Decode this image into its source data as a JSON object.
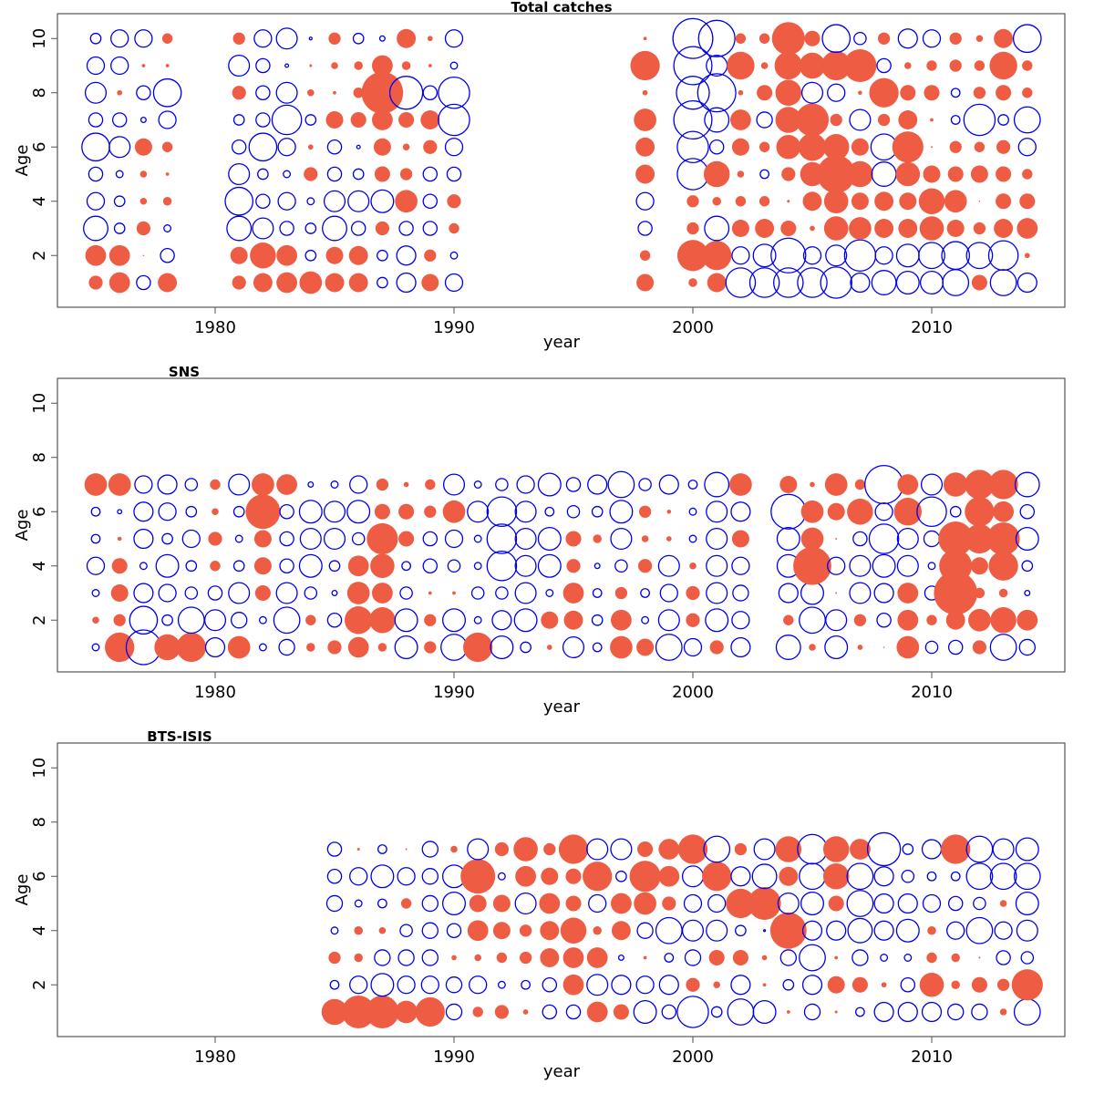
{
  "colors": {
    "positive": "#ee5d43",
    "negative": "#0000ee",
    "frame": "#555555"
  },
  "chart_data": [
    {
      "type": "scatter",
      "subtype": "bubble",
      "title": "Total catches",
      "title_position": "top-center",
      "xlabel": "year",
      "ylabel": "Age",
      "xlim": [
        1973.5,
        2015.5
      ],
      "ylim": [
        0,
        11
      ],
      "xticks": [
        1980,
        1990,
        2000,
        2010
      ],
      "yticks": [
        2,
        4,
        6,
        8,
        10
      ],
      "encoding": "signed residual: positive = filled red, negative = open blue; magnitude = bubble size",
      "ages": [
        1,
        2,
        3,
        4,
        5,
        6,
        7,
        8,
        9,
        10
      ],
      "years": [
        1975,
        1976,
        1977,
        1978,
        1981,
        1982,
        1983,
        1984,
        1985,
        1986,
        1987,
        1988,
        1989,
        1990,
        1998,
        2000,
        2001,
        2002,
        2003,
        2004,
        2005,
        2006,
        2007,
        2008,
        2009,
        2010,
        2011,
        2012,
        2013,
        2014
      ],
      "values_by_year": {
        "1975": [
          0.4,
          0.6,
          -0.7,
          -0.5,
          -0.4,
          -0.8,
          -0.4,
          -0.6,
          -0.5,
          -0.3
        ],
        "1976": [
          0.6,
          0.6,
          -0.3,
          -0.3,
          -0.2,
          -0.6,
          -0.4,
          0.15,
          -0.5,
          -0.5
        ],
        "1977": [
          -0.4,
          0.03,
          0.4,
          0.2,
          0.2,
          0.5,
          -0.15,
          -0.4,
          0.1,
          -0.5
        ],
        "1978": [
          0.55,
          -0.4,
          -0.2,
          0.25,
          0.1,
          0.3,
          -0.5,
          -0.8,
          0.1,
          0.3
        ],
        "1981": [
          0.4,
          0.5,
          -0.7,
          -0.8,
          -0.6,
          -0.4,
          -0.3,
          0.4,
          -0.6,
          0.35
        ],
        "1982": [
          0.55,
          0.75,
          -0.6,
          -0.4,
          -0.3,
          -0.8,
          -0.4,
          -0.4,
          -0.4,
          -0.5
        ],
        "1983": [
          0.6,
          0.6,
          -0.4,
          -0.5,
          -0.2,
          -0.5,
          -0.85,
          -0.6,
          -0.1,
          -0.6
        ],
        "1984": [
          0.65,
          -0.3,
          -0.3,
          -0.2,
          0.4,
          0.15,
          -0.3,
          0.2,
          0.08,
          -0.08
        ],
        "1985": [
          0.55,
          0.5,
          -0.7,
          -0.6,
          -0.4,
          -0.4,
          0.5,
          0.1,
          0.2,
          0.35
        ],
        "1986": [
          0.55,
          0.55,
          -0.4,
          -0.6,
          -0.3,
          -0.1,
          0.45,
          0.3,
          0.25,
          -0.3
        ],
        "1987": [
          -0.3,
          -0.3,
          0.4,
          -0.65,
          0.45,
          0.5,
          0.6,
          1.2,
          0.6,
          -0.15
        ],
        "1988": [
          -0.55,
          -0.55,
          -0.4,
          0.65,
          0.35,
          0.2,
          0.45,
          -0.95,
          0.25,
          0.55
        ],
        "1989": [
          0.5,
          0.35,
          -0.4,
          -0.4,
          -0.4,
          0.4,
          0.55,
          -0.4,
          0.1,
          0.15
        ],
        "1990": [
          -0.5,
          -0.2,
          0.3,
          0.4,
          -0.4,
          -0.5,
          -0.9,
          -0.9,
          -0.2,
          -0.5
        ]
      },
      "values_by_year_2": {
        "1998": [
          0.5,
          0.3,
          -0.4,
          -0.5,
          0.55,
          0.55,
          0.65,
          0.15,
          0.85,
          0.1
        ],
        "2000": [
          0.25,
          0.9,
          0.35,
          0.35,
          -0.9,
          -0.9,
          -1.1,
          -0.95,
          -1.1,
          -1.15
        ],
        "2001": [
          0.55,
          0.85,
          -0.7,
          0.25,
          0.75,
          -0.4,
          -0.7,
          -1.1,
          -0.6,
          -1.05
        ],
        "2002": [
          -0.85,
          -0.5,
          0.5,
          0.3,
          0.2,
          0.5,
          0.6,
          0.15,
          0.8,
          0.3
        ],
        "2003": [
          -0.85,
          -0.65,
          0.55,
          0.3,
          -0.25,
          0.3,
          -0.45,
          0.45,
          0.2,
          0.3
        ],
        "2004": [
          -0.85,
          -1.0,
          0.45,
          0.08,
          0.4,
          0.7,
          0.75,
          0.75,
          0.8,
          0.95
        ],
        "2005": [
          -0.85,
          -0.5,
          0.15,
          0.55,
          0.7,
          0.8,
          0.95,
          -0.6,
          0.75,
          0.45
        ],
        "2006": [
          -0.9,
          -0.6,
          0.7,
          0.7,
          1.1,
          0.75,
          0.35,
          -0.5,
          0.85,
          -0.8
        ],
        "2007": [
          -0.55,
          -0.9,
          0.65,
          0.5,
          0.75,
          0.5,
          -0.6,
          0.12,
          0.95,
          -0.35
        ],
        "2008": [
          -0.7,
          -0.5,
          0.55,
          0.55,
          -0.7,
          -0.75,
          0.35,
          0.85,
          -0.4,
          0.35
        ],
        "2009": [
          -0.65,
          -0.65,
          0.55,
          0.5,
          0.7,
          0.9,
          0.55,
          0.45,
          0.2,
          -0.55
        ],
        "2010": [
          -0.65,
          -0.75,
          0.7,
          0.75,
          0.5,
          0.05,
          0.1,
          0.45,
          0.3,
          -0.5
        ],
        "2011": [
          -0.75,
          -0.8,
          0.5,
          0.65,
          0.45,
          0.35,
          -0.25,
          -0.25,
          0.35,
          0.35
        ],
        "2012": [
          0.45,
          -0.75,
          0.35,
          0.03,
          0.5,
          0.3,
          -0.9,
          0.35,
          0.3,
          0.2
        ],
        "2013": [
          -0.75,
          -0.85,
          0.55,
          0.45,
          0.45,
          0.4,
          -0.3,
          0.45,
          0.8,
          0.55
        ],
        "2014": [
          -0.55,
          0.15,
          0.6,
          0.45,
          0.3,
          -0.5,
          -0.75,
          0.3,
          0.3,
          -0.8
        ]
      }
    },
    {
      "type": "scatter",
      "subtype": "bubble",
      "title": "SNS",
      "title_position": "top-left",
      "xlabel": "year",
      "ylabel": "Age",
      "xlim": [
        1973.5,
        2015.5
      ],
      "ylim": [
        0,
        11
      ],
      "xticks": [
        1980,
        1990,
        2000,
        2010
      ],
      "yticks": [
        2,
        4,
        6,
        8,
        10
      ],
      "ages": [
        1,
        2,
        3,
        4,
        5,
        6,
        7
      ],
      "values_by_year": {
        "1975": [
          -0.2,
          0.2,
          -0.2,
          -0.5,
          -0.25,
          -0.25,
          0.65
        ],
        "1976": [
          0.85,
          0.35,
          0.5,
          0.45,
          0.12,
          -0.12,
          0.65
        ],
        "1977": [
          -1.0,
          -0.8,
          -0.55,
          -0.2,
          -0.55,
          -0.55,
          -0.5
        ],
        "1978": [
          0.75,
          -0.3,
          -0.5,
          -0.65,
          -0.3,
          -0.5,
          -0.55
        ],
        "1979": [
          0.85,
          -0.75,
          -0.35,
          -0.3,
          -0.5,
          -0.3,
          -0.35
        ],
        "1980": [
          -0.55,
          -0.6,
          -0.4,
          0.3,
          0.4,
          0.2,
          0.3
        ],
        "1981": [
          0.65,
          -0.45,
          -0.6,
          -0.3,
          -0.2,
          -0.3,
          -0.6
        ],
        "1982": [
          -0.2,
          -0.2,
          0.45,
          0.5,
          0.5,
          1.0,
          0.65
        ],
        "1983": [
          -0.45,
          -0.75,
          -0.6,
          -0.4,
          -0.4,
          -0.4,
          0.6
        ],
        "1984": [
          0.25,
          0.3,
          -0.35,
          -0.65,
          -0.6,
          -0.65,
          -0.15
        ],
        "1985": [
          0.4,
          -0.4,
          -0.15,
          -0.3,
          -0.6,
          -0.6,
          -0.2
        ],
        "1986": [
          0.6,
          0.8,
          0.65,
          0.6,
          -0.35,
          -0.65,
          -0.5
        ],
        "1987": [
          0.25,
          0.75,
          0.6,
          0.7,
          0.9,
          0.45,
          0.35
        ],
        "1988": [
          -0.65,
          -0.65,
          -0.35,
          -0.25,
          0.45,
          0.45,
          0.15
        ],
        "1989": [
          0.35,
          0.35,
          0.1,
          -0.4,
          -0.4,
          0.35,
          0.3
        ],
        "1990": [
          -0.75,
          -0.65,
          0.1,
          -0.35,
          -0.5,
          0.65,
          -0.6
        ],
        "1991": [
          0.85,
          -0.2,
          -0.35,
          -0.2,
          -0.2,
          -0.6,
          -0.2
        ],
        "1992": [
          -0.65,
          -0.55,
          -0.35,
          -0.85,
          -0.85,
          -0.85,
          -0.35
        ],
        "1993": [
          -0.3,
          -0.65,
          -0.6,
          -0.6,
          -0.6,
          -0.6,
          -0.5
        ],
        "1994": [
          0.15,
          0.5,
          -0.2,
          -0.65,
          -0.65,
          -0.25,
          -0.65
        ],
        "1995": [
          -0.6,
          0.55,
          0.6,
          0.4,
          0.45,
          -0.35,
          -0.4
        ],
        "1996": [
          -0.25,
          -0.3,
          -0.25,
          -0.15,
          0.25,
          -0.3,
          -0.55
        ],
        "1997": [
          0.65,
          0.6,
          0.35,
          -0.35,
          -0.6,
          -0.65,
          -0.75
        ],
        "1998": [
          0.5,
          -0.2,
          -0.25,
          0.4,
          0.2,
          0.35,
          -0.35
        ],
        "1999": [
          -0.75,
          -0.6,
          -0.5,
          -0.6,
          0.15,
          0.12,
          -0.55
        ],
        "2000": [
          -0.5,
          0.4,
          0.4,
          0.2,
          -0.2,
          -0.2,
          -0.25
        ],
        "2001": [
          0.4,
          -0.65,
          -0.6,
          -0.6,
          -0.6,
          -0.6,
          -0.7
        ],
        "2002": [
          -0.55,
          -0.5,
          -0.45,
          -0.5,
          0.5,
          -0.55,
          0.65
        ],
        "2004": [
          -0.7,
          0.3,
          -0.55,
          -0.65,
          -0.65,
          -1.0,
          0.5
        ],
        "2005": [
          0.2,
          -0.75,
          -0.65,
          1.1,
          0.65,
          0.65,
          0.15
        ],
        "2006": [
          -0.65,
          -0.6,
          0.05,
          -0.5,
          0.05,
          0.5,
          0.65
        ],
        "2007": [
          0.15,
          0.35,
          -0.6,
          -0.6,
          -0.4,
          0.75,
          0.3
        ],
        "2008": [
          0,
          -0.4,
          -0.55,
          -0.65,
          -0.85,
          -0.5,
          -1.1
        ],
        "2009": [
          0.65,
          0.6,
          0.6,
          -0.6,
          -0.6,
          0.8,
          0.6
        ],
        "2010": [
          -0.35,
          0.3,
          -0.4,
          -0.2,
          -0.45,
          -0.85,
          -0.6
        ],
        "2011": [
          -0.4,
          0.55,
          1.25,
          0.95,
          1.0,
          -0.3,
          0.7
        ],
        "2012": [
          0.4,
          0.65,
          0.3,
          0.5,
          0.85,
          0.85,
          0.85
        ],
        "2013": [
          -0.75,
          0.75,
          0.25,
          0.85,
          0.95,
          0.6,
          0.85
        ],
        "2014": [
          -0.45,
          0.6,
          -0.15,
          -0.3,
          -0.65,
          -0.4,
          -0.7
        ]
      }
    },
    {
      "type": "scatter",
      "subtype": "bubble",
      "title": "BTS-ISIS",
      "title_position": "top-left",
      "xlabel": "year",
      "ylabel": "Age",
      "xlim": [
        1973.5,
        2015.5
      ],
      "ylim": [
        0,
        11
      ],
      "xticks": [
        1980,
        1990,
        2000,
        2010
      ],
      "yticks": [
        2,
        4,
        6,
        8,
        10
      ],
      "ages": [
        1,
        2,
        3,
        4,
        5,
        6,
        7
      ],
      "values_by_year": {
        "1985": [
          0.75,
          -0.25,
          0.35,
          -0.2,
          -0.45,
          -0.4,
          -0.4
        ],
        "1986": [
          0.95,
          -0.5,
          0.25,
          0.25,
          -0.2,
          -0.5,
          0.08
        ],
        "1987": [
          0.95,
          -0.65,
          -0.45,
          0.2,
          -0.25,
          -0.65,
          -0.25
        ],
        "1988": [
          0.65,
          -0.5,
          -0.45,
          -0.35,
          0.3,
          -0.5,
          0.05
        ],
        "1989": [
          0.85,
          -0.5,
          -0.45,
          -0.45,
          -0.45,
          -0.45,
          -0.45
        ],
        "1990": [
          -0.45,
          -0.45,
          0.15,
          -0.4,
          -0.65,
          -0.65,
          0.2
        ],
        "1991": [
          0.3,
          -0.5,
          0.2,
          0.6,
          0.5,
          1.0,
          -0.6
        ],
        "1992": [
          0.4,
          -0.2,
          0.3,
          0.5,
          0.5,
          -0.2,
          0.4
        ],
        "1993": [
          0.15,
          -0.25,
          0.35,
          0.35,
          -0.6,
          0.6,
          0.7
        ],
        "1994": [
          -0.4,
          -0.4,
          0.55,
          0.55,
          0.6,
          0.5,
          0.35
        ],
        "1995": [
          -0.4,
          0.6,
          0.6,
          0.75,
          0.45,
          0.45,
          0.85
        ],
        "1996": [
          0.6,
          -0.6,
          0.6,
          0.25,
          -0.5,
          0.85,
          -0.6
        ],
        "1997": [
          0.45,
          -0.55,
          -0.15,
          0.55,
          0.6,
          -0.3,
          -0.6
        ],
        "1998": [
          -0.65,
          -0.5,
          0.1,
          -0.45,
          0.65,
          0.9,
          0.45
        ],
        "1999": [
          -0.4,
          -0.55,
          -0.25,
          -0.75,
          0.4,
          0.6,
          0.6
        ],
        "2000": [
          -0.9,
          0.4,
          -0.45,
          -0.6,
          -0.5,
          -0.6,
          0.85
        ],
        "2001": [
          -0.3,
          0.2,
          0.45,
          -0.6,
          -0.5,
          0.85,
          -0.75
        ],
        "2002": [
          -0.75,
          -0.55,
          0.45,
          -0.3,
          0.85,
          -0.55,
          0.35
        ],
        "2003": [
          -0.65,
          0.1,
          0.15,
          -0.05,
          0.95,
          -0.7,
          -0.6
        ],
        "2004": [
          0.1,
          -0.3,
          -0.45,
          1.05,
          -0.6,
          0.55,
          0.75
        ],
        "2005": [
          -0.45,
          -0.55,
          -0.75,
          -0.55,
          -0.65,
          -0.75,
          -0.85
        ],
        "2006": [
          0.08,
          0.5,
          0.1,
          -0.55,
          0.45,
          0.75,
          0.75
        ],
        "2007": [
          -0.25,
          0.45,
          -0.45,
          -0.7,
          -0.75,
          -0.75,
          0.6
        ],
        "2008": [
          -0.55,
          0.15,
          -0.2,
          -0.55,
          -0.55,
          -0.55,
          -0.95
        ],
        "2009": [
          -0.55,
          -0.4,
          -0.2,
          -0.65,
          -0.55,
          -0.35,
          -0.3
        ],
        "2010": [
          -0.55,
          0.7,
          0.3,
          0.25,
          -0.5,
          -0.25,
          -0.55
        ],
        "2011": [
          -0.45,
          0.25,
          0.25,
          -0.5,
          -0.4,
          -0.25,
          0.85
        ],
        "2012": [
          -0.45,
          0.45,
          0.05,
          -0.75,
          -0.35,
          -0.75,
          -0.75
        ],
        "2013": [
          0.2,
          0.35,
          -0.4,
          -0.5,
          0.2,
          -0.75,
          -0.6
        ],
        "2014": [
          -0.75,
          0.9,
          -0.35,
          -0.6,
          -0.65,
          -0.75,
          -0.65
        ]
      }
    }
  ]
}
